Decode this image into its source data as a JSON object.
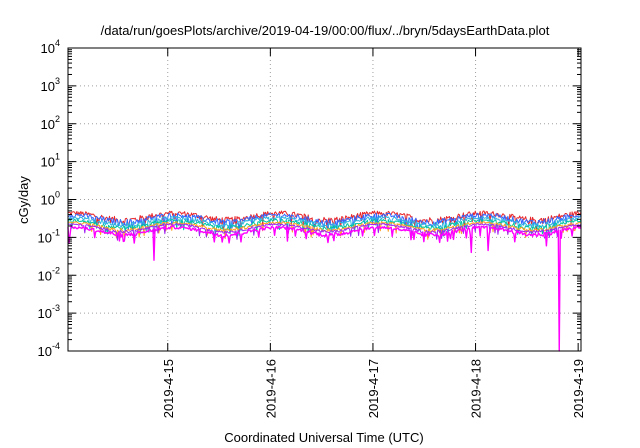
{
  "chart_data": {
    "type": "line",
    "title": "/data/run/goesPlots/archive/2019-04-19/00:00/flux/../bryn/5daysEarthData.plot",
    "xlabel": "Coordinated Universal Time (UTC)",
    "ylabel": "cGy/day",
    "yscale": "log",
    "ylim": [
      0.0001,
      10000
    ],
    "xlim": [
      "2019-04-14T00:40",
      "2019-04-19T00:40"
    ],
    "grid": true,
    "x_ticks": [
      {
        "value": "2019-04-15T00:00",
        "label": "2019-4-15"
      },
      {
        "value": "2019-04-16T00:00",
        "label": "2019-4-16"
      },
      {
        "value": "2019-04-17T00:00",
        "label": "2019-4-17"
      },
      {
        "value": "2019-04-18T00:00",
        "label": "2019-4-18"
      },
      {
        "value": "2019-04-19T00:00",
        "label": "2019-4-19"
      }
    ],
    "y_ticks": [
      {
        "value": 0.0001,
        "base": "10",
        "exp": "-4"
      },
      {
        "value": 0.001,
        "base": "10",
        "exp": "-3"
      },
      {
        "value": 0.01,
        "base": "10",
        "exp": "-2"
      },
      {
        "value": 0.1,
        "base": "10",
        "exp": "-1"
      },
      {
        "value": 1,
        "base": "10",
        "exp": "0"
      },
      {
        "value": 10,
        "base": "10",
        "exp": "1"
      },
      {
        "value": 100,
        "base": "10",
        "exp": "2"
      },
      {
        "value": 1000,
        "base": "10",
        "exp": "3"
      },
      {
        "value": 10000,
        "base": "10",
        "exp": "4"
      }
    ],
    "series": [
      {
        "color": "#e8262a",
        "base": 0.36,
        "jitter": 0.18
      },
      {
        "color": "#3366ff",
        "base": 0.32,
        "jitter": 0.16
      },
      {
        "color": "#2fb5e0",
        "base": 0.27,
        "jitter": 0.12
      },
      {
        "color": "#00c8a0",
        "base": 0.23,
        "jitter": 0.1
      },
      {
        "color": "#ffa020",
        "base": 0.2,
        "jitter": 0.08
      },
      {
        "color": "#a020f0",
        "base": 0.18,
        "jitter": 0.07
      },
      {
        "color": "#ff00ff",
        "base": 0.15,
        "jitter": 0.1
      }
    ],
    "dips": [
      {
        "x": "2019-04-14T00:55",
        "y": 0.07
      },
      {
        "x": "2019-04-14T20:45",
        "y": 0.025
      },
      {
        "x": "2019-04-16T04:00",
        "y": 0.08
      },
      {
        "x": "2019-04-17T23:00",
        "y": 0.04
      },
      {
        "x": "2019-04-18T03:00",
        "y": 0.045
      },
      {
        "x": "2019-04-18T16:40",
        "y": 0.06
      },
      {
        "x": "2019-04-18T19:30",
        "y": 0.0001
      }
    ]
  }
}
